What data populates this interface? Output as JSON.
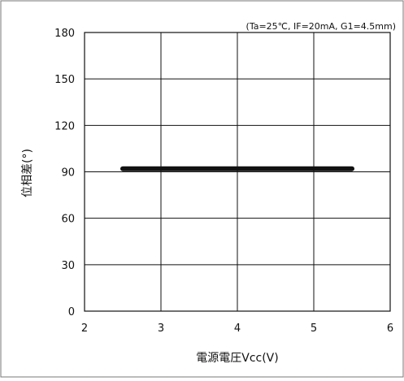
{
  "chart_data": {
    "type": "line",
    "annotation": "(Ta=25℃, IF=20mA, G1=4.5mm)",
    "xlabel": "電源電圧Vcc(V)",
    "ylabel": "位相差(°)",
    "xlim": [
      2,
      6
    ],
    "ylim": [
      0,
      180
    ],
    "x_ticks": [
      "2",
      "3",
      "4",
      "5",
      "6"
    ],
    "y_ticks": [
      "0",
      "30",
      "60",
      "90",
      "120",
      "150",
      "180"
    ],
    "grid": true,
    "legend": "none",
    "series": [
      {
        "x": [
          2.5,
          5.5
        ],
        "y": [
          92,
          92
        ],
        "color": "#111111"
      }
    ]
  }
}
